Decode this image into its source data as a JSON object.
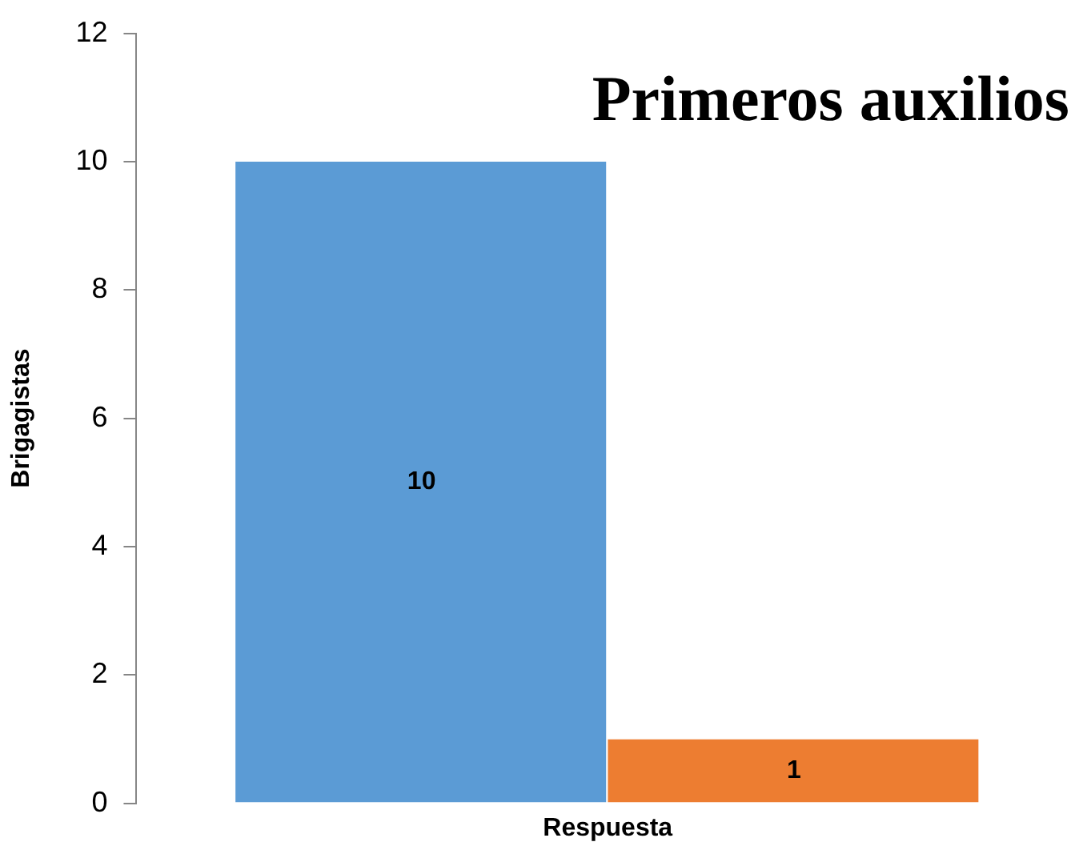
{
  "chart_data": {
    "type": "bar",
    "title": "Primeros auxilios",
    "xlabel": "Respuesta",
    "ylabel": "Brigagistas",
    "categories": [
      null
    ],
    "series": [
      {
        "color": "#5b9bd5",
        "values": [
          10
        ]
      },
      {
        "color": "#ed7d31",
        "values": [
          1
        ]
      }
    ],
    "ylim": [
      0,
      12
    ],
    "yticks": [
      0,
      2,
      4,
      6,
      8,
      10,
      12
    ],
    "grid": false,
    "legend": false,
    "data_labels": true
  }
}
